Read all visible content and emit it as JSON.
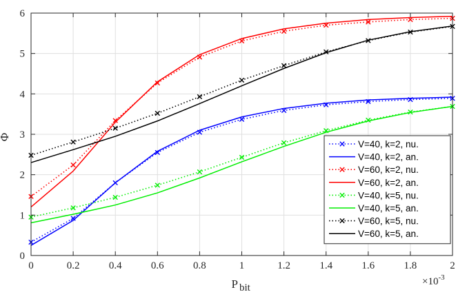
{
  "chart_data": {
    "type": "line",
    "xlabel_main": "P",
    "xlabel_sub": "bit",
    "ylabel": "Φ",
    "x_exponent_base": "×10",
    "x_exponent_power": "-3",
    "xlim": [
      0,
      2
    ],
    "ylim": [
      0,
      6
    ],
    "xticks": [
      0,
      0.2,
      0.4,
      0.6,
      0.8,
      1,
      1.2,
      1.4,
      1.6,
      1.8,
      2
    ],
    "xtick_labels": [
      "0",
      "0.2",
      "0.4",
      "0.6",
      "0.8",
      "1",
      "1.2",
      "1.4",
      "1.6",
      "1.8",
      "2"
    ],
    "yticks": [
      0,
      1,
      2,
      3,
      4,
      5,
      6
    ],
    "ytick_labels": [
      "0",
      "1",
      "2",
      "3",
      "4",
      "5",
      "6"
    ],
    "grid": true,
    "legend_position": "bottom-right",
    "x": [
      0,
      0.2,
      0.4,
      0.6,
      0.8,
      1.0,
      1.2,
      1.4,
      1.6,
      1.8,
      2.0
    ],
    "series": [
      {
        "name": "V=40, k=2, nu.",
        "color": "#0000ff",
        "style": "dotted",
        "marker": "x",
        "values": [
          0.33,
          0.92,
          1.8,
          2.55,
          3.05,
          3.37,
          3.59,
          3.73,
          3.81,
          3.86,
          3.89
        ]
      },
      {
        "name": "V=40, k=2, an.",
        "color": "#0000ff",
        "style": "solid",
        "marker": "none",
        "values": [
          0.25,
          0.87,
          1.8,
          2.58,
          3.1,
          3.43,
          3.64,
          3.77,
          3.85,
          3.89,
          3.92
        ]
      },
      {
        "name": "V=60, k=2, nu.",
        "color": "#ff0000",
        "style": "dotted",
        "marker": "x",
        "values": [
          1.46,
          2.24,
          3.34,
          4.27,
          4.91,
          5.31,
          5.55,
          5.7,
          5.78,
          5.84,
          5.87
        ]
      },
      {
        "name": "V=60, k=2, an.",
        "color": "#ff0000",
        "style": "solid",
        "marker": "none",
        "values": [
          1.2,
          2.09,
          3.3,
          4.3,
          4.97,
          5.37,
          5.61,
          5.75,
          5.84,
          5.89,
          5.92
        ]
      },
      {
        "name": "V=40, k=5, nu.",
        "color": "#00ee00",
        "style": "dotted",
        "marker": "x",
        "values": [
          0.95,
          1.18,
          1.44,
          1.74,
          2.07,
          2.43,
          2.79,
          3.09,
          3.35,
          3.55,
          3.69
        ]
      },
      {
        "name": "V=40, k=5, an.",
        "color": "#00ee00",
        "style": "solid",
        "marker": "none",
        "values": [
          0.81,
          1.02,
          1.25,
          1.55,
          1.92,
          2.32,
          2.7,
          3.05,
          3.33,
          3.54,
          3.69
        ]
      },
      {
        "name": "V=60, k=5, nu.",
        "color": "#000000",
        "style": "dotted",
        "marker": "x",
        "values": [
          2.48,
          2.81,
          3.15,
          3.52,
          3.93,
          4.34,
          4.7,
          5.04,
          5.32,
          5.53,
          5.67
        ]
      },
      {
        "name": "V=60, k=5, an.",
        "color": "#000000",
        "style": "solid",
        "marker": "none",
        "values": [
          2.3,
          2.62,
          2.95,
          3.33,
          3.76,
          4.2,
          4.63,
          5.02,
          5.33,
          5.54,
          5.68
        ]
      }
    ]
  }
}
